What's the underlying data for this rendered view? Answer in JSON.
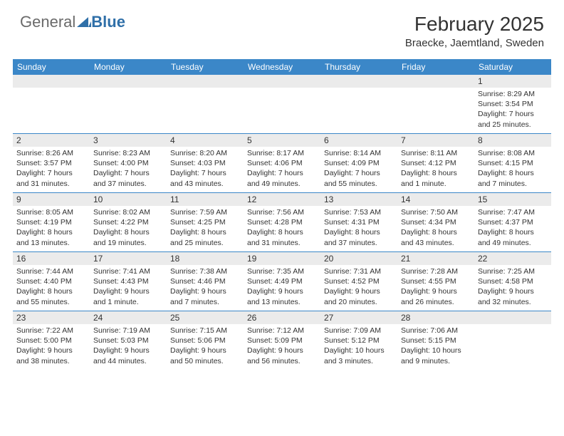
{
  "logo": {
    "text1": "General",
    "text2": "Blue"
  },
  "title": "February 2025",
  "location": "Braecke, Jaemtland, Sweden",
  "colors": {
    "header_bg": "#3b87c8",
    "header_text": "#ffffff",
    "daynum_bg": "#ebebeb",
    "border": "#3b87c8",
    "text": "#333333"
  },
  "day_headers": [
    "Sunday",
    "Monday",
    "Tuesday",
    "Wednesday",
    "Thursday",
    "Friday",
    "Saturday"
  ],
  "weeks": [
    [
      {
        "num": "",
        "sunrise": "",
        "sunset": "",
        "daylight": ""
      },
      {
        "num": "",
        "sunrise": "",
        "sunset": "",
        "daylight": ""
      },
      {
        "num": "",
        "sunrise": "",
        "sunset": "",
        "daylight": ""
      },
      {
        "num": "",
        "sunrise": "",
        "sunset": "",
        "daylight": ""
      },
      {
        "num": "",
        "sunrise": "",
        "sunset": "",
        "daylight": ""
      },
      {
        "num": "",
        "sunrise": "",
        "sunset": "",
        "daylight": ""
      },
      {
        "num": "1",
        "sunrise": "Sunrise: 8:29 AM",
        "sunset": "Sunset: 3:54 PM",
        "daylight": "Daylight: 7 hours and 25 minutes."
      }
    ],
    [
      {
        "num": "2",
        "sunrise": "Sunrise: 8:26 AM",
        "sunset": "Sunset: 3:57 PM",
        "daylight": "Daylight: 7 hours and 31 minutes."
      },
      {
        "num": "3",
        "sunrise": "Sunrise: 8:23 AM",
        "sunset": "Sunset: 4:00 PM",
        "daylight": "Daylight: 7 hours and 37 minutes."
      },
      {
        "num": "4",
        "sunrise": "Sunrise: 8:20 AM",
        "sunset": "Sunset: 4:03 PM",
        "daylight": "Daylight: 7 hours and 43 minutes."
      },
      {
        "num": "5",
        "sunrise": "Sunrise: 8:17 AM",
        "sunset": "Sunset: 4:06 PM",
        "daylight": "Daylight: 7 hours and 49 minutes."
      },
      {
        "num": "6",
        "sunrise": "Sunrise: 8:14 AM",
        "sunset": "Sunset: 4:09 PM",
        "daylight": "Daylight: 7 hours and 55 minutes."
      },
      {
        "num": "7",
        "sunrise": "Sunrise: 8:11 AM",
        "sunset": "Sunset: 4:12 PM",
        "daylight": "Daylight: 8 hours and 1 minute."
      },
      {
        "num": "8",
        "sunrise": "Sunrise: 8:08 AM",
        "sunset": "Sunset: 4:15 PM",
        "daylight": "Daylight: 8 hours and 7 minutes."
      }
    ],
    [
      {
        "num": "9",
        "sunrise": "Sunrise: 8:05 AM",
        "sunset": "Sunset: 4:19 PM",
        "daylight": "Daylight: 8 hours and 13 minutes."
      },
      {
        "num": "10",
        "sunrise": "Sunrise: 8:02 AM",
        "sunset": "Sunset: 4:22 PM",
        "daylight": "Daylight: 8 hours and 19 minutes."
      },
      {
        "num": "11",
        "sunrise": "Sunrise: 7:59 AM",
        "sunset": "Sunset: 4:25 PM",
        "daylight": "Daylight: 8 hours and 25 minutes."
      },
      {
        "num": "12",
        "sunrise": "Sunrise: 7:56 AM",
        "sunset": "Sunset: 4:28 PM",
        "daylight": "Daylight: 8 hours and 31 minutes."
      },
      {
        "num": "13",
        "sunrise": "Sunrise: 7:53 AM",
        "sunset": "Sunset: 4:31 PM",
        "daylight": "Daylight: 8 hours and 37 minutes."
      },
      {
        "num": "14",
        "sunrise": "Sunrise: 7:50 AM",
        "sunset": "Sunset: 4:34 PM",
        "daylight": "Daylight: 8 hours and 43 minutes."
      },
      {
        "num": "15",
        "sunrise": "Sunrise: 7:47 AM",
        "sunset": "Sunset: 4:37 PM",
        "daylight": "Daylight: 8 hours and 49 minutes."
      }
    ],
    [
      {
        "num": "16",
        "sunrise": "Sunrise: 7:44 AM",
        "sunset": "Sunset: 4:40 PM",
        "daylight": "Daylight: 8 hours and 55 minutes."
      },
      {
        "num": "17",
        "sunrise": "Sunrise: 7:41 AM",
        "sunset": "Sunset: 4:43 PM",
        "daylight": "Daylight: 9 hours and 1 minute."
      },
      {
        "num": "18",
        "sunrise": "Sunrise: 7:38 AM",
        "sunset": "Sunset: 4:46 PM",
        "daylight": "Daylight: 9 hours and 7 minutes."
      },
      {
        "num": "19",
        "sunrise": "Sunrise: 7:35 AM",
        "sunset": "Sunset: 4:49 PM",
        "daylight": "Daylight: 9 hours and 13 minutes."
      },
      {
        "num": "20",
        "sunrise": "Sunrise: 7:31 AM",
        "sunset": "Sunset: 4:52 PM",
        "daylight": "Daylight: 9 hours and 20 minutes."
      },
      {
        "num": "21",
        "sunrise": "Sunrise: 7:28 AM",
        "sunset": "Sunset: 4:55 PM",
        "daylight": "Daylight: 9 hours and 26 minutes."
      },
      {
        "num": "22",
        "sunrise": "Sunrise: 7:25 AM",
        "sunset": "Sunset: 4:58 PM",
        "daylight": "Daylight: 9 hours and 32 minutes."
      }
    ],
    [
      {
        "num": "23",
        "sunrise": "Sunrise: 7:22 AM",
        "sunset": "Sunset: 5:00 PM",
        "daylight": "Daylight: 9 hours and 38 minutes."
      },
      {
        "num": "24",
        "sunrise": "Sunrise: 7:19 AM",
        "sunset": "Sunset: 5:03 PM",
        "daylight": "Daylight: 9 hours and 44 minutes."
      },
      {
        "num": "25",
        "sunrise": "Sunrise: 7:15 AM",
        "sunset": "Sunset: 5:06 PM",
        "daylight": "Daylight: 9 hours and 50 minutes."
      },
      {
        "num": "26",
        "sunrise": "Sunrise: 7:12 AM",
        "sunset": "Sunset: 5:09 PM",
        "daylight": "Daylight: 9 hours and 56 minutes."
      },
      {
        "num": "27",
        "sunrise": "Sunrise: 7:09 AM",
        "sunset": "Sunset: 5:12 PM",
        "daylight": "Daylight: 10 hours and 3 minutes."
      },
      {
        "num": "28",
        "sunrise": "Sunrise: 7:06 AM",
        "sunset": "Sunset: 5:15 PM",
        "daylight": "Daylight: 10 hours and 9 minutes."
      },
      {
        "num": "",
        "sunrise": "",
        "sunset": "",
        "daylight": ""
      }
    ]
  ]
}
